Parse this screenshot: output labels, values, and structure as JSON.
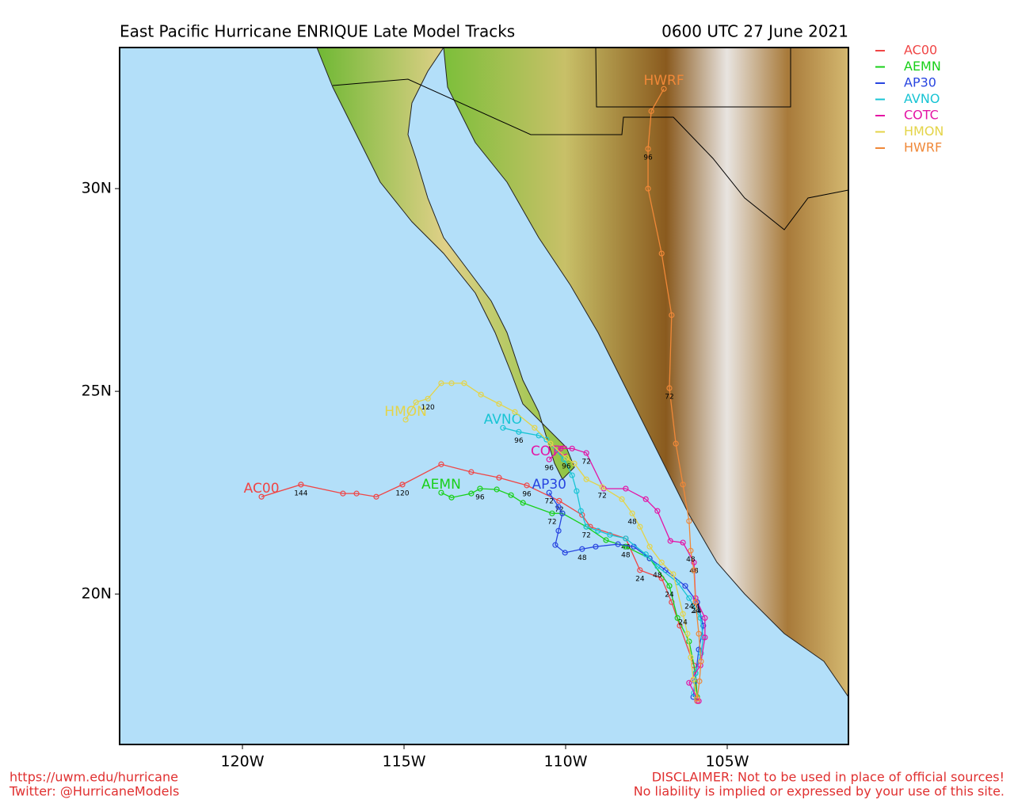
{
  "chart_data": {
    "type": "track",
    "title": "East Pacific Hurricane ENRIQUE Late Model Tracks",
    "subtitle": "0600 UTC 27 June 2021",
    "footer_left": [
      "https://uwm.edu/hurricane",
      "Twitter: @HurricaneModels"
    ],
    "footer_right": [
      "DISCLAIMER: Not to be used in place of official sources!",
      "No liability is implied or expressed by your use of this site."
    ],
    "xlim": [
      -123.8,
      -101.25
    ],
    "ylim": [
      16.29,
      33.48
    ],
    "xticks": [
      {
        "value": -120,
        "label": "120W"
      },
      {
        "value": -115,
        "label": "115W"
      },
      {
        "value": -110,
        "label": "110W"
      },
      {
        "value": -105,
        "label": "105W"
      }
    ],
    "yticks": [
      {
        "value": 20,
        "label": "20N"
      },
      {
        "value": 25,
        "label": "25N"
      },
      {
        "value": 30,
        "label": "30N"
      }
    ],
    "series": [
      {
        "name": "AC00",
        "color": "#f04545",
        "x": [
          -105.93,
          -106.03,
          -106.47,
          -106.72,
          -107.03,
          -107.7,
          -108.14,
          -109.24,
          -109.49,
          -110.2,
          -111.2,
          -112.06,
          -112.92,
          -113.85,
          -115.05,
          -115.86,
          -116.47,
          -116.89,
          -118.19,
          -119.41
        ],
        "values": [
          17.36,
          18.24,
          19.22,
          19.8,
          20.39,
          20.59,
          21.37,
          21.66,
          21.95,
          22.3,
          22.68,
          22.87,
          23.01,
          23.2,
          22.7,
          22.4,
          22.48,
          22.48,
          22.7,
          22.4
        ],
        "labels": [
          null,
          null,
          null,
          null,
          null,
          "24",
          "48",
          null,
          null,
          "72",
          "96",
          null,
          null,
          null,
          "120",
          null,
          null,
          null,
          "144",
          null
        ]
      },
      {
        "name": "AEMN",
        "color": "#18d018",
        "x": [
          -105.93,
          -105.98,
          -106.18,
          -106.54,
          -106.79,
          -107.4,
          -108.14,
          -108.75,
          -109.36,
          -110.1,
          -110.42,
          -111.32,
          -111.69,
          -112.13,
          -112.65,
          -112.92,
          -113.53,
          -113.85
        ],
        "values": [
          17.46,
          18.05,
          18.83,
          19.41,
          20.2,
          20.88,
          21.17,
          21.33,
          21.66,
          21.99,
          21.99,
          22.25,
          22.44,
          22.58,
          22.6,
          22.48,
          22.38,
          22.5
        ],
        "labels": [
          null,
          null,
          null,
          null,
          "24",
          null,
          "48",
          null,
          null,
          null,
          "72",
          null,
          null,
          null,
          "96",
          null,
          null,
          null
        ]
      },
      {
        "name": "AP30",
        "color": "#2845e0",
        "x": [
          -106.05,
          -106.0,
          -105.88,
          -105.74,
          -105.93,
          -106.3,
          -106.91,
          -107.4,
          -107.89,
          -108.38,
          -109.07,
          -109.49,
          -110.02,
          -110.32,
          -110.22,
          -110.1,
          -110.22,
          -110.51
        ],
        "values": [
          17.46,
          17.85,
          18.63,
          19.22,
          19.8,
          20.2,
          20.59,
          20.88,
          21.17,
          21.23,
          21.17,
          21.11,
          21.02,
          21.21,
          21.56,
          21.99,
          22.15,
          22.5
        ],
        "labels": [
          null,
          null,
          null,
          null,
          "24",
          null,
          null,
          null,
          null,
          null,
          null,
          "48",
          null,
          null,
          null,
          null,
          null,
          "72"
        ]
      },
      {
        "name": "AVNO",
        "color": "#18c4d4",
        "x": [
          -106.03,
          -105.98,
          -105.81,
          -105.74,
          -105.83,
          -106.18,
          -106.54,
          -107.16,
          -107.52,
          -108.14,
          -108.63,
          -109.0,
          -109.36,
          -109.53,
          -109.66,
          -109.8,
          -110.05,
          -110.59,
          -110.83,
          -111.45,
          -111.94
        ],
        "values": [
          17.56,
          18.05,
          18.54,
          18.93,
          19.41,
          19.9,
          20.29,
          20.68,
          20.98,
          21.37,
          21.46,
          21.56,
          21.66,
          22.05,
          22.54,
          22.93,
          23.32,
          23.81,
          23.91,
          24.0,
          24.1
        ],
        "labels": [
          null,
          null,
          null,
          null,
          null,
          "24",
          null,
          "48",
          null,
          null,
          null,
          null,
          "72",
          null,
          null,
          null,
          null,
          null,
          null,
          "96",
          null
        ]
      },
      {
        "name": "COTC",
        "color": "#e414a4",
        "x": [
          -105.88,
          -106.18,
          -105.83,
          -105.69,
          -105.69,
          -105.98,
          -106.03,
          -106.37,
          -106.76,
          -107.16,
          -107.52,
          -108.14,
          -108.82,
          -109.36,
          -109.8,
          -110.15,
          -110.51
        ],
        "values": [
          17.36,
          17.81,
          18.24,
          18.93,
          19.41,
          19.9,
          20.78,
          21.27,
          21.31,
          22.05,
          22.34,
          22.6,
          22.6,
          23.48,
          23.59,
          23.59,
          23.32
        ],
        "labels": [
          null,
          null,
          null,
          null,
          null,
          "24",
          "48",
          null,
          null,
          null,
          null,
          null,
          null,
          "72",
          null,
          null,
          "96"
        ]
      },
      {
        "name": "HMON",
        "color": "#e4d448",
        "x": [
          -105.93,
          -106.05,
          -106.13,
          -106.23,
          -106.37,
          -106.67,
          -107.03,
          -107.4,
          -107.7,
          -107.94,
          -108.26,
          -108.87,
          -109.36,
          -109.73,
          -109.98,
          -110.47,
          -110.96,
          -111.57,
          -112.06,
          -112.62,
          -113.14,
          -113.53,
          -113.85,
          -114.26,
          -114.63,
          -114.95
        ],
        "values": [
          17.42,
          17.89,
          18.44,
          19.02,
          19.51,
          20.49,
          20.78,
          21.17,
          21.66,
          21.99,
          22.34,
          22.64,
          22.83,
          23.22,
          23.36,
          23.71,
          24.1,
          24.49,
          24.69,
          24.92,
          25.2,
          25.2,
          25.2,
          24.82,
          24.73,
          24.3
        ],
        "labels": [
          null,
          null,
          null,
          null,
          "24",
          null,
          null,
          null,
          null,
          "48",
          null,
          "72",
          null,
          null,
          "96",
          null,
          null,
          null,
          null,
          null,
          null,
          null,
          null,
          "120",
          null,
          null
        ]
      },
      {
        "name": "HWRF",
        "color": "#f08838",
        "x": [
          -105.93,
          -105.86,
          -105.81,
          -105.88,
          -105.98,
          -106.03,
          -106.13,
          -106.18,
          -106.37,
          -106.59,
          -106.79,
          -106.72,
          -107.03,
          -107.45,
          -107.45,
          -107.35,
          -106.96
        ],
        "values": [
          17.42,
          17.85,
          18.34,
          19.02,
          19.8,
          20.59,
          21.07,
          21.8,
          22.7,
          23.71,
          25.08,
          26.88,
          28.4,
          30.0,
          30.98,
          31.91,
          32.46
        ],
        "labels": [
          null,
          null,
          null,
          null,
          "24",
          null,
          "48",
          null,
          null,
          null,
          "72",
          null,
          null,
          null,
          "96",
          null,
          null
        ]
      }
    ]
  }
}
